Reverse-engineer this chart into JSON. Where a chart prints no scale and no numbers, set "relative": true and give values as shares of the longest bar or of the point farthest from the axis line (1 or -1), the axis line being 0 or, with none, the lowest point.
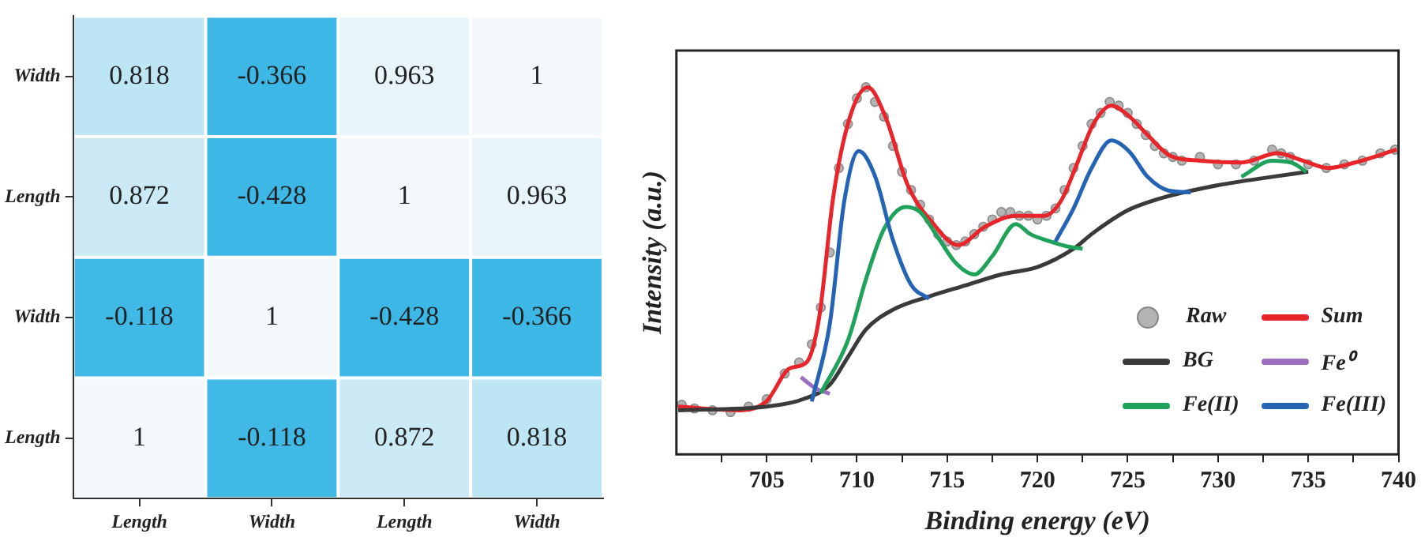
{
  "chart_data": [
    {
      "type": "heatmap",
      "categories": [
        "Length",
        "Width",
        "Length",
        "Width"
      ],
      "y_categories": [
        "Width",
        "Length",
        "Width",
        "Length"
      ],
      "cells": [
        [
          0.818,
          -0.366,
          0.963,
          1
        ],
        [
          0.872,
          -0.428,
          1,
          0.963
        ],
        [
          -0.118,
          1,
          -0.428,
          -0.366
        ],
        [
          1,
          -0.118,
          0.872,
          0.818
        ]
      ],
      "data_labels": true
    },
    {
      "type": "line",
      "relative": true,
      "xlabel": "Binding energy (eV)",
      "ylabel": "Intensity (a.u.)",
      "xlim": [
        700,
        740
      ],
      "xticks": [
        {
          "value": 702.5,
          "label": null
        },
        705,
        {
          "value": 707.5,
          "label": null
        },
        710,
        {
          "value": 712.5,
          "label": null
        },
        715,
        {
          "value": 717.5,
          "label": null
        },
        720,
        {
          "value": 722.5,
          "label": null
        },
        725,
        {
          "value": 727.5,
          "label": null
        },
        730,
        {
          "value": 732.5,
          "label": null
        },
        735,
        {
          "value": 737.5,
          "label": null
        },
        740
      ],
      "tick_labels": "x",
      "grid": false,
      "legend": "bottom right",
      "series": [
        {
          "name": "Raw",
          "type": "scatter",
          "marker": "circle",
          "color": "#b4b4b4",
          "x": [
            700.3,
            701,
            702,
            703,
            704,
            705,
            706,
            706.8,
            707.5,
            708,
            708.5,
            709,
            709.5,
            710,
            710.5,
            711,
            711.5,
            712,
            712.5,
            713,
            713.5,
            714,
            714.5,
            715,
            715.5,
            716,
            716.5,
            717,
            717.5,
            718,
            718.5,
            719,
            719.5,
            720,
            720.5,
            721,
            721.5,
            722,
            722.5,
            723,
            723.5,
            724,
            724.5,
            725,
            725.5,
            726,
            726.5,
            727,
            727.5,
            728,
            729,
            730,
            731,
            732,
            733,
            733.5,
            734,
            735,
            736,
            737,
            738,
            739,
            739.8
          ],
          "values": [
            0.135,
            0.125,
            0.12,
            0.115,
            0.13,
            0.15,
            0.22,
            0.25,
            0.3,
            0.4,
            0.55,
            0.78,
            0.9,
            0.97,
            1.0,
            0.96,
            0.92,
            0.84,
            0.77,
            0.72,
            0.68,
            0.64,
            0.6,
            0.58,
            0.57,
            0.58,
            0.6,
            0.62,
            0.64,
            0.66,
            0.66,
            0.65,
            0.65,
            0.64,
            0.65,
            0.67,
            0.72,
            0.78,
            0.84,
            0.9,
            0.93,
            0.96,
            0.95,
            0.93,
            0.9,
            0.87,
            0.84,
            0.82,
            0.81,
            0.8,
            0.81,
            0.79,
            0.79,
            0.8,
            0.83,
            0.82,
            0.81,
            0.79,
            0.78,
            0.79,
            0.8,
            0.82,
            0.83
          ]
        },
        {
          "name": "Sum",
          "color": "#e8252a",
          "x": [
            700.1,
            703.6,
            705,
            706.3,
            707.2,
            707.9,
            708.7,
            709.6,
            710.6,
            711.6,
            712.8,
            714.2,
            715.6,
            717.1,
            718.8,
            719.9,
            720.4,
            721.3,
            722.1,
            723.1,
            724.1,
            725.1,
            726.1,
            727.3,
            729,
            731.3,
            733.3,
            734.7,
            736.1,
            737.6,
            739.9
          ],
          "values": [
            0.13,
            0.12,
            0.145,
            0.235,
            0.25,
            0.37,
            0.705,
            0.917,
            1,
            0.917,
            0.735,
            0.63,
            0.57,
            0.62,
            0.65,
            0.65,
            0.65,
            0.69,
            0.78,
            0.9,
            0.95,
            0.92,
            0.87,
            0.815,
            0.8,
            0.795,
            0.82,
            0.8,
            0.78,
            0.795,
            0.83
          ]
        },
        {
          "name": "BG",
          "color": "#3a3a3a",
          "x": [
            700.1,
            705,
            707,
            708.5,
            709.5,
            710.5,
            712,
            714,
            716,
            718,
            720,
            722,
            723,
            724,
            725,
            727,
            730,
            733,
            735
          ],
          "values": [
            0.12,
            0.13,
            0.15,
            0.19,
            0.265,
            0.34,
            0.394,
            0.43,
            0.46,
            0.49,
            0.51,
            0.56,
            0.6,
            0.635,
            0.665,
            0.7,
            0.733,
            0.756,
            0.77
          ]
        },
        {
          "name": "Fe⁰",
          "color": "#9b6fc0",
          "x": [
            706.9,
            707.7,
            708.5
          ],
          "values": [
            0.21,
            0.18,
            0.165
          ]
        },
        {
          "name": "Fe(II)",
          "color": "#1fa35a",
          "x": [
            708,
            709.5,
            710.5,
            711.5,
            712.7,
            713.5,
            714.5,
            715.5,
            716.5,
            717.5,
            718.8,
            719.6,
            720.7,
            721.6,
            722.5,
            null,
            731.3,
            733,
            734.1,
            734.9
          ],
          "values": [
            0.167,
            0.31,
            0.477,
            0.614,
            0.674,
            0.66,
            0.59,
            0.52,
            0.49,
            0.54,
            0.627,
            0.6,
            0.58,
            0.567,
            0.56,
            null,
            0.756,
            0.8,
            0.794,
            0.77
          ]
        },
        {
          "name": "Fe(III)",
          "color": "#2563b5",
          "x": [
            707.5,
            708.5,
            709.3,
            710.1,
            711,
            712,
            713,
            714,
            null,
            721,
            722,
            723,
            724.1,
            725.1,
            726.1,
            727.3,
            728.5
          ],
          "values": [
            0.144,
            0.356,
            0.69,
            0.826,
            0.758,
            0.583,
            0.462,
            0.424,
            null,
            0.58,
            0.67,
            0.78,
            0.855,
            0.824,
            0.756,
            0.718,
            0.714
          ]
        }
      ]
    }
  ]
}
